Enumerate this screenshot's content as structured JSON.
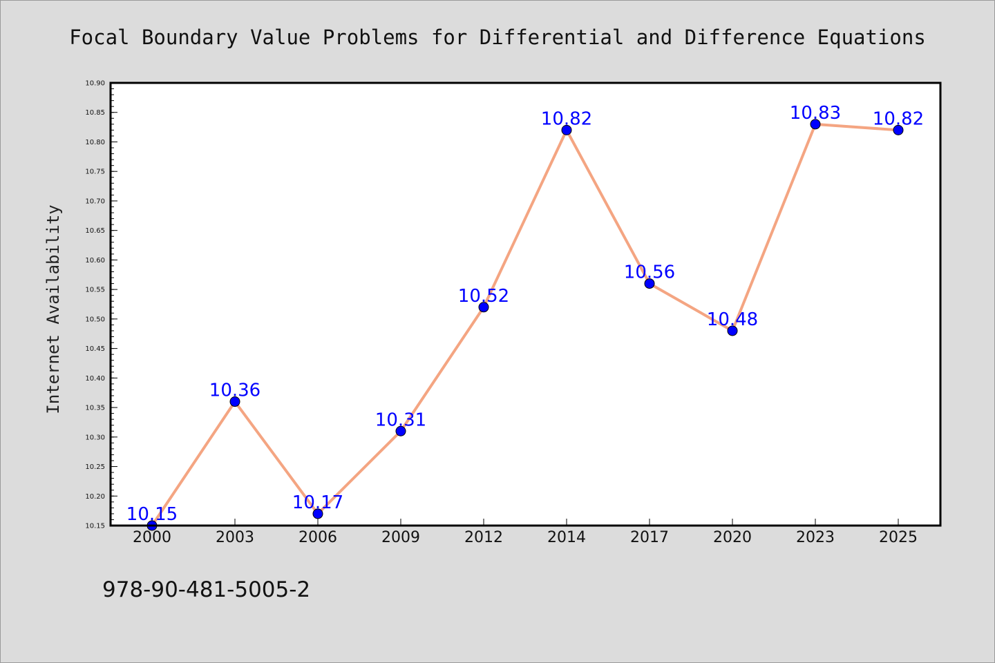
{
  "chart_data": {
    "type": "line",
    "title": "Focal Boundary Value Problems for Differential and Difference Equations",
    "xlabel": "",
    "ylabel": "Internet Availability",
    "categories": [
      "2000",
      "2003",
      "2006",
      "2009",
      "2012",
      "2014",
      "2017",
      "2020",
      "2023",
      "2025"
    ],
    "series": [
      {
        "values": [
          10.15,
          10.36,
          10.17,
          10.31,
          10.52,
          10.82,
          10.56,
          10.48,
          10.83,
          10.82
        ],
        "labels": [
          "10.15",
          "10.36",
          "10.17",
          "10.31",
          "10.52",
          "10.82",
          "10.56",
          "10.48",
          "10.83",
          "10.82"
        ],
        "line_color": "#f4a582",
        "marker_color": "#0000ff"
      }
    ],
    "ylim": [
      10.15,
      10.9
    ],
    "yticks": [
      "10.15",
      "10.20",
      "10.25",
      "10.30",
      "10.35",
      "10.40",
      "10.45",
      "10.50",
      "10.55",
      "10.60",
      "10.65",
      "10.70",
      "10.75",
      "10.80",
      "10.85",
      "10.90"
    ],
    "grid": false,
    "legend": "none"
  },
  "footer": {
    "isbn": "978-90-481-5005-2"
  },
  "colors": {
    "background": "#dcdcdc",
    "plot_area": "#ffffff",
    "data_label": "#0000ff"
  }
}
